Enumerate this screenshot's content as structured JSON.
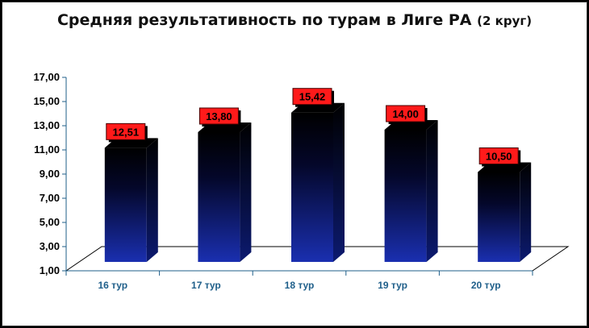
{
  "chart_data": {
    "type": "bar",
    "title": "Средняя результативность по турам в Лиге РА",
    "subtitle": "(2 круг)",
    "categories": [
      "16 тур",
      "17 тур",
      "18 тур",
      "19 тур",
      "20 тур"
    ],
    "values": [
      12.51,
      13.8,
      15.42,
      14.0,
      10.5
    ],
    "value_labels": [
      "12,51",
      "13,80",
      "15,42",
      "14,00",
      "10,50"
    ],
    "ylim": [
      1,
      17
    ],
    "yticks": [
      "1,00",
      "3,00",
      "5,00",
      "7,00",
      "9,00",
      "11,00",
      "13,00",
      "15,00",
      "17,00"
    ],
    "grid": false,
    "legend": "none",
    "colors": {
      "bar_top": "#000000",
      "bar_bottom": "#1a2fb0",
      "label_box": "#ff1a1a",
      "category_text": "#1f5f8a"
    }
  }
}
